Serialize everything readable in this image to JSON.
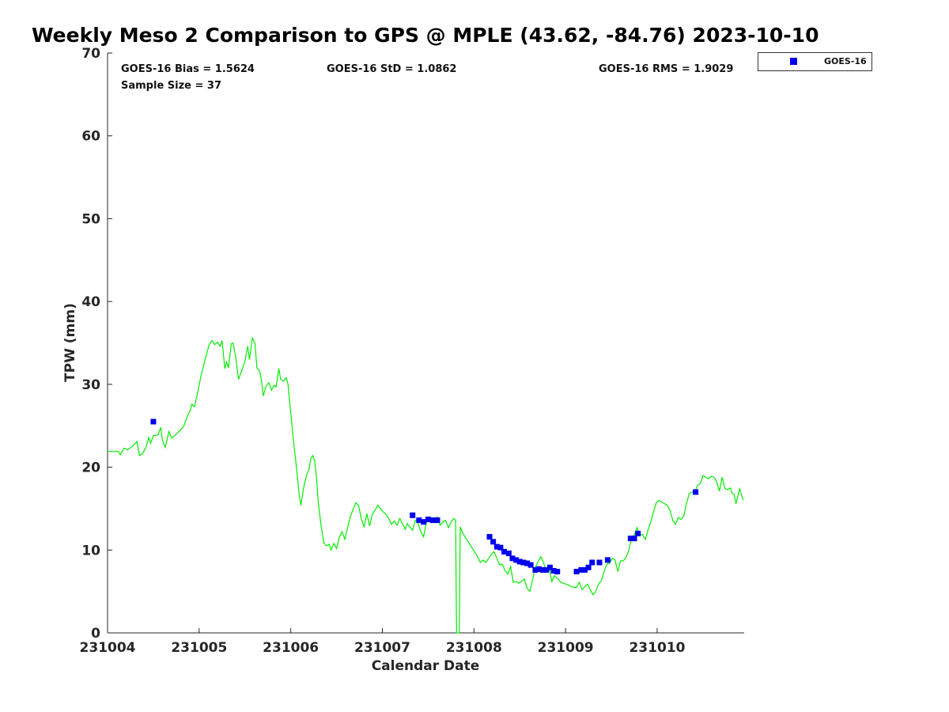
{
  "chart_data": {
    "type": "scatter",
    "title": "Weekly Meso 2 Comparison to GPS @ MPLE (43.62, -84.76) 2023-10-10",
    "xlabel": "Calendar Date",
    "ylabel": "TPW (mm)",
    "xlim": [
      0,
      6.95
    ],
    "ylim": [
      0,
      70
    ],
    "x_tick_labels": [
      "231004",
      "231005",
      "231006",
      "231007",
      "231008",
      "231009",
      "231010"
    ],
    "y_ticks": [
      0,
      10,
      20,
      30,
      40,
      50,
      60,
      70
    ],
    "grid": false,
    "legend_placement": "top-right, outside plot",
    "stats": {
      "bias": "GOES-16 Bias = 1.5624",
      "std": "GOES-16 StD = 1.0862",
      "rms": "GOES-16 RMS = 1.9029",
      "sample": "Sample Size = 37"
    },
    "series": [
      {
        "name": "GPS",
        "kind": "line",
        "color": "#00ee00",
        "points": [
          [
            0.0,
            21.9
          ],
          [
            0.12,
            21.9
          ],
          [
            0.14,
            21.5
          ],
          [
            0.18,
            22.3
          ],
          [
            0.22,
            22.1
          ],
          [
            0.28,
            22.6
          ],
          [
            0.32,
            23.1
          ],
          [
            0.35,
            21.4
          ],
          [
            0.38,
            21.6
          ],
          [
            0.42,
            22.4
          ],
          [
            0.45,
            23.6
          ],
          [
            0.47,
            22.9
          ],
          [
            0.5,
            23.8
          ],
          [
            0.55,
            23.9
          ],
          [
            0.58,
            24.8
          ],
          [
            0.6,
            23.2
          ],
          [
            0.63,
            22.4
          ],
          [
            0.67,
            24.3
          ],
          [
            0.7,
            23.5
          ],
          [
            0.75,
            24.0
          ],
          [
            0.83,
            24.9
          ],
          [
            0.87,
            26.1
          ],
          [
            0.9,
            26.8
          ],
          [
            0.92,
            27.6
          ],
          [
            0.95,
            27.3
          ],
          [
            0.98,
            28.8
          ],
          [
            1.02,
            31.0
          ],
          [
            1.07,
            33.2
          ],
          [
            1.11,
            34.8
          ],
          [
            1.14,
            35.3
          ],
          [
            1.17,
            34.8
          ],
          [
            1.2,
            35.1
          ],
          [
            1.23,
            34.6
          ],
          [
            1.25,
            35.3
          ],
          [
            1.28,
            31.9
          ],
          [
            1.3,
            32.7
          ],
          [
            1.32,
            32.0
          ],
          [
            1.35,
            34.9
          ],
          [
            1.37,
            35.0
          ],
          [
            1.4,
            33.2
          ],
          [
            1.43,
            30.6
          ],
          [
            1.47,
            31.8
          ],
          [
            1.5,
            32.8
          ],
          [
            1.53,
            34.6
          ],
          [
            1.55,
            33.0
          ],
          [
            1.58,
            35.6
          ],
          [
            1.61,
            34.9
          ],
          [
            1.63,
            32.0
          ],
          [
            1.66,
            31.6
          ],
          [
            1.68,
            30.5
          ],
          [
            1.7,
            28.6
          ],
          [
            1.73,
            29.8
          ],
          [
            1.76,
            30.2
          ],
          [
            1.79,
            29.3
          ],
          [
            1.82,
            29.9
          ],
          [
            1.84,
            29.7
          ],
          [
            1.87,
            31.9
          ],
          [
            1.89,
            30.6
          ],
          [
            1.92,
            30.4
          ],
          [
            1.95,
            30.8
          ],
          [
            1.97,
            30.0
          ],
          [
            2.0,
            26.5
          ],
          [
            2.03,
            23.2
          ],
          [
            2.06,
            20.2
          ],
          [
            2.09,
            16.9
          ],
          [
            2.11,
            15.4
          ],
          [
            2.14,
            17.5
          ],
          [
            2.17,
            18.9
          ],
          [
            2.2,
            19.8
          ],
          [
            2.22,
            21.1
          ],
          [
            2.24,
            21.4
          ],
          [
            2.26,
            20.8
          ],
          [
            2.28,
            18.9
          ],
          [
            2.3,
            15.8
          ],
          [
            2.33,
            13.0
          ],
          [
            2.36,
            10.9
          ],
          [
            2.39,
            10.5
          ],
          [
            2.42,
            10.7
          ],
          [
            2.44,
            10.0
          ],
          [
            2.47,
            10.8
          ],
          [
            2.5,
            10.2
          ],
          [
            2.53,
            11.5
          ],
          [
            2.56,
            12.2
          ],
          [
            2.59,
            11.3
          ],
          [
            2.62,
            12.7
          ],
          [
            2.65,
            14.0
          ],
          [
            2.68,
            14.9
          ],
          [
            2.71,
            15.7
          ],
          [
            2.74,
            15.4
          ],
          [
            2.77,
            13.8
          ],
          [
            2.8,
            12.8
          ],
          [
            2.83,
            14.4
          ],
          [
            2.86,
            12.9
          ],
          [
            2.89,
            14.3
          ],
          [
            2.92,
            14.8
          ],
          [
            2.95,
            15.4
          ],
          [
            2.98,
            15.0
          ],
          [
            3.01,
            14.6
          ],
          [
            3.04,
            14.3
          ],
          [
            3.07,
            13.8
          ],
          [
            3.1,
            13.1
          ],
          [
            3.13,
            13.5
          ],
          [
            3.16,
            13.0
          ],
          [
            3.19,
            13.8
          ],
          [
            3.22,
            13.2
          ],
          [
            3.25,
            12.5
          ],
          [
            3.27,
            13.2
          ],
          [
            3.3,
            12.8
          ],
          [
            3.33,
            12.4
          ],
          [
            3.36,
            13.6
          ],
          [
            3.39,
            13.2
          ],
          [
            3.42,
            12.2
          ],
          [
            3.45,
            11.6
          ],
          [
            3.48,
            13.3
          ],
          [
            3.51,
            13.6
          ],
          [
            3.54,
            13.5
          ],
          [
            3.57,
            13.8
          ],
          [
            3.6,
            14.0
          ],
          [
            3.63,
            13.0
          ],
          [
            3.66,
            13.4
          ],
          [
            3.69,
            13.6
          ],
          [
            3.72,
            12.7
          ],
          [
            3.75,
            13.4
          ],
          [
            3.78,
            13.8
          ],
          [
            3.8,
            13.6
          ],
          [
            3.81,
            0.0
          ],
          [
            3.84,
            0.0
          ],
          [
            3.85,
            12.8
          ],
          [
            3.88,
            12.0
          ],
          [
            3.92,
            11.3
          ],
          [
            3.96,
            10.6
          ],
          [
            4.0,
            9.9
          ],
          [
            4.04,
            9.2
          ],
          [
            4.07,
            8.5
          ],
          [
            4.1,
            8.8
          ],
          [
            4.13,
            8.5
          ],
          [
            4.16,
            9.0
          ],
          [
            4.19,
            9.5
          ],
          [
            4.22,
            9.8
          ],
          [
            4.25,
            9.0
          ],
          [
            4.28,
            8.2
          ],
          [
            4.31,
            8.3
          ],
          [
            4.34,
            7.5
          ],
          [
            4.37,
            7.1
          ],
          [
            4.4,
            8.0
          ],
          [
            4.43,
            6.1
          ],
          [
            4.46,
            6.2
          ],
          [
            4.49,
            6.0
          ],
          [
            4.52,
            6.2
          ],
          [
            4.55,
            6.5
          ],
          [
            4.58,
            5.4
          ],
          [
            4.61,
            5.0
          ],
          [
            4.64,
            6.4
          ],
          [
            4.67,
            7.9
          ],
          [
            4.7,
            8.6
          ],
          [
            4.73,
            9.2
          ],
          [
            4.76,
            8.5
          ],
          [
            4.79,
            7.4
          ],
          [
            4.82,
            7.9
          ],
          [
            4.85,
            6.2
          ],
          [
            4.88,
            6.9
          ],
          [
            4.91,
            6.6
          ],
          [
            4.94,
            6.2
          ],
          [
            4.97,
            6.0
          ],
          [
            5.0,
            5.9
          ],
          [
            5.03,
            5.8
          ],
          [
            5.06,
            5.6
          ],
          [
            5.09,
            5.5
          ],
          [
            5.12,
            5.5
          ],
          [
            5.15,
            6.1
          ],
          [
            5.18,
            5.2
          ],
          [
            5.21,
            5.6
          ],
          [
            5.24,
            5.9
          ],
          [
            5.27,
            5.2
          ],
          [
            5.3,
            4.6
          ],
          [
            5.33,
            5.0
          ],
          [
            5.36,
            5.9
          ],
          [
            5.39,
            6.3
          ],
          [
            5.42,
            7.4
          ],
          [
            5.45,
            8.3
          ],
          [
            5.48,
            8.4
          ],
          [
            5.51,
            9.0
          ],
          [
            5.54,
            8.8
          ],
          [
            5.57,
            7.4
          ],
          [
            5.6,
            8.7
          ],
          [
            5.63,
            8.7
          ],
          [
            5.66,
            9.1
          ],
          [
            5.69,
            10.0
          ],
          [
            5.72,
            11.4
          ],
          [
            5.75,
            11.8
          ],
          [
            5.78,
            12.7
          ],
          [
            5.81,
            11.8
          ],
          [
            5.84,
            11.9
          ],
          [
            5.87,
            11.3
          ],
          [
            5.9,
            12.4
          ],
          [
            5.93,
            13.4
          ],
          [
            5.96,
            14.6
          ],
          [
            5.99,
            15.7
          ],
          [
            6.02,
            16.0
          ],
          [
            6.05,
            15.8
          ],
          [
            6.08,
            15.6
          ],
          [
            6.11,
            15.4
          ],
          [
            6.14,
            14.8
          ],
          [
            6.17,
            13.6
          ],
          [
            6.2,
            13.1
          ],
          [
            6.23,
            13.9
          ],
          [
            6.26,
            13.7
          ],
          [
            6.29,
            14.1
          ],
          [
            6.32,
            15.6
          ],
          [
            6.35,
            16.8
          ],
          [
            6.38,
            17.0
          ],
          [
            6.41,
            16.9
          ],
          [
            6.44,
            17.8
          ],
          [
            6.47,
            18.0
          ],
          [
            6.5,
            19.0
          ],
          [
            6.53,
            18.8
          ],
          [
            6.56,
            18.6
          ],
          [
            6.59,
            18.9
          ],
          [
            6.62,
            18.8
          ],
          [
            6.65,
            18.2
          ],
          [
            6.68,
            17.1
          ],
          [
            6.71,
            18.8
          ],
          [
            6.74,
            17.4
          ],
          [
            6.77,
            17.3
          ],
          [
            6.8,
            17.5
          ],
          [
            6.82,
            16.8
          ],
          [
            6.84,
            16.7
          ],
          [
            6.86,
            15.6
          ],
          [
            6.9,
            17.4
          ],
          [
            6.94,
            16.0
          ]
        ]
      },
      {
        "name": "GOES-16",
        "kind": "scatter",
        "color": "#0000ee",
        "points": [
          [
            0.5,
            25.5
          ],
          [
            3.33,
            14.2
          ],
          [
            3.4,
            13.6
          ],
          [
            3.45,
            13.4
          ],
          [
            3.5,
            13.7
          ],
          [
            3.55,
            13.6
          ],
          [
            3.6,
            13.6
          ],
          [
            4.17,
            11.6
          ],
          [
            4.21,
            11.0
          ],
          [
            4.25,
            10.4
          ],
          [
            4.29,
            10.3
          ],
          [
            4.33,
            9.8
          ],
          [
            4.38,
            9.6
          ],
          [
            4.42,
            9.0
          ],
          [
            4.46,
            8.8
          ],
          [
            4.5,
            8.6
          ],
          [
            4.54,
            8.5
          ],
          [
            4.58,
            8.4
          ],
          [
            4.62,
            8.2
          ],
          [
            4.67,
            7.6
          ],
          [
            4.71,
            7.7
          ],
          [
            4.75,
            7.6
          ],
          [
            4.79,
            7.6
          ],
          [
            4.83,
            7.9
          ],
          [
            4.87,
            7.5
          ],
          [
            4.91,
            7.4
          ],
          [
            5.12,
            7.4
          ],
          [
            5.17,
            7.6
          ],
          [
            5.21,
            7.6
          ],
          [
            5.25,
            7.9
          ],
          [
            5.29,
            8.5
          ],
          [
            5.37,
            8.5
          ],
          [
            5.46,
            8.8
          ],
          [
            5.71,
            11.4
          ],
          [
            5.75,
            11.4
          ],
          [
            5.79,
            12.0
          ],
          [
            6.42,
            17.0
          ]
        ]
      }
    ]
  }
}
